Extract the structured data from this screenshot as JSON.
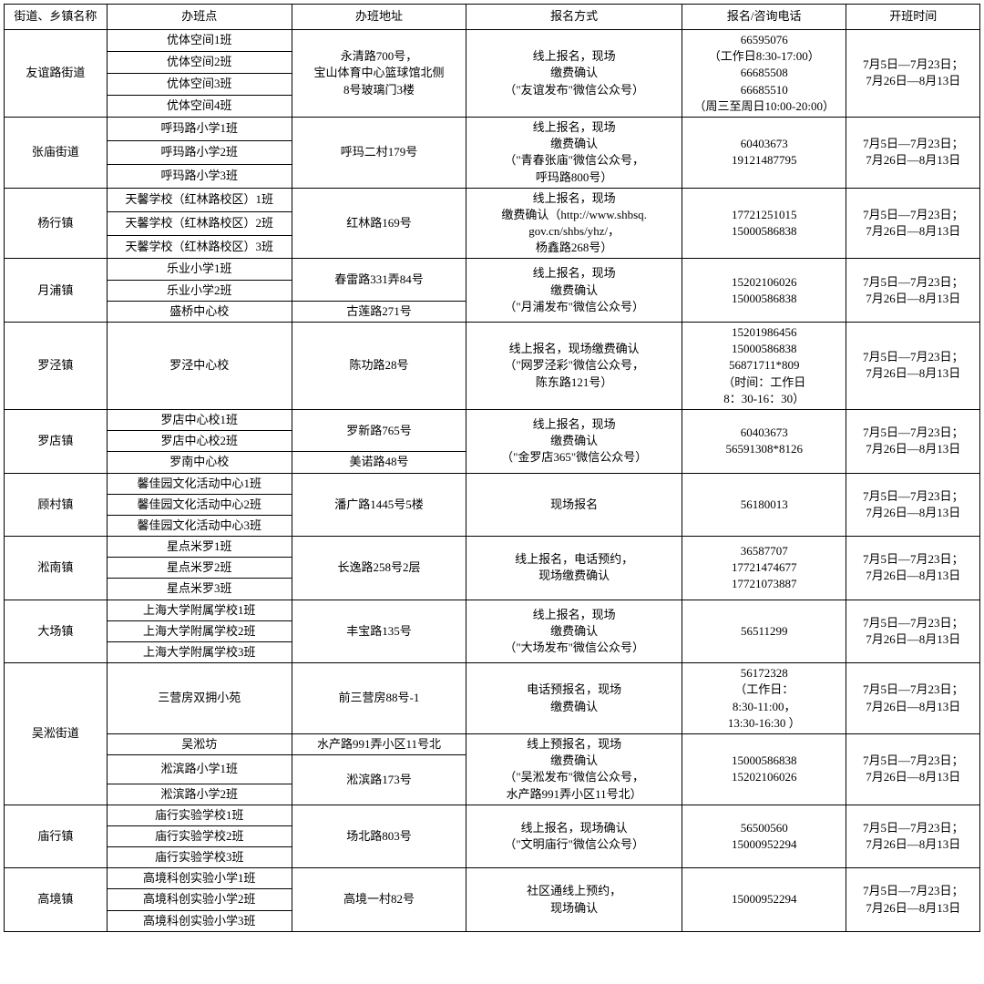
{
  "headers": [
    "街道、乡镇名称",
    "办班点",
    "办班地址",
    "报名方式",
    "报名/咨询电话",
    "开班时间"
  ],
  "time_default": "7月5日—7月23日；\n7月26日—8月13日",
  "d1": {
    "name": "友谊路街道",
    "s1": "优体空间1班",
    "s2": "优体空间2班",
    "s3": "优体空间3班",
    "s4": "优体空间4班",
    "addr": "永清路700号，\n宝山体育中心篮球馆北侧\n8号玻璃门3楼",
    "method": "线上报名，现场\n缴费确认\n（\"友谊发布\"微信公众号）",
    "phone": "66595076\n（工作日8:30-17:00）\n66685508\n66685510\n（周三至周日10:00-20:00）"
  },
  "d2": {
    "name": "张庙街道",
    "s1": "呼玛路小学1班",
    "s2": "呼玛路小学2班",
    "s3": "呼玛路小学3班",
    "addr": "呼玛二村179号",
    "method": "线上报名，现场\n缴费确认\n（\"青春张庙\"微信公众号，\n呼玛路800号）",
    "phone": "60403673\n19121487795"
  },
  "d3": {
    "name": "杨行镇",
    "s1": "天馨学校（红林路校区）1班",
    "s2": "天馨学校（红林路校区）2班",
    "s3": "天馨学校（红林路校区）3班",
    "addr": "红林路169号",
    "method": "线上报名，现场\n缴费确认（http://www.shbsq.\ngov.cn/shbs/yhz/，\n杨鑫路268号）",
    "phone": "17721251015\n15000586838"
  },
  "d4": {
    "name": "月浦镇",
    "s1": "乐业小学1班",
    "s2": "乐业小学2班",
    "s3": "盛桥中心校",
    "addr1": "春雷路331弄84号",
    "addr2": "古莲路271号",
    "method": "线上报名，现场\n缴费确认\n（\"月浦发布\"微信公众号）",
    "phone": "15202106026\n15000586838"
  },
  "d5": {
    "name": "罗泾镇",
    "s1": "罗泾中心校",
    "addr": "陈功路28号",
    "method": "线上报名，现场缴费确认\n（\"网罗泾彩\"微信公众号，\n陈东路121号）",
    "phone": "15201986456\n15000586838\n56871711*809\n（时间：工作日\n8：30-16：30）"
  },
  "d6": {
    "name": "罗店镇",
    "s1": "罗店中心校1班",
    "s2": "罗店中心校2班",
    "s3": "罗南中心校",
    "addr1": "罗新路765号",
    "addr2": "美诺路48号",
    "method": "线上报名，现场\n缴费确认\n（\"金罗店365\"微信公众号）",
    "phone": "60403673\n56591308*8126"
  },
  "d7": {
    "name": "顾村镇",
    "s1": "馨佳园文化活动中心1班",
    "s2": "馨佳园文化活动中心2班",
    "s3": "馨佳园文化活动中心3班",
    "addr": "潘广路1445号5楼",
    "method": "现场报名",
    "phone": "56180013"
  },
  "d8": {
    "name": "淞南镇",
    "s1": "星点米罗1班",
    "s2": "星点米罗2班",
    "s3": "星点米罗3班",
    "addr": "长逸路258号2层",
    "method": "线上报名，电话预约，\n现场缴费确认",
    "phone": "36587707\n17721474677\n17721073887"
  },
  "d9": {
    "name": "大场镇",
    "s1": "上海大学附属学校1班",
    "s2": "上海大学附属学校2班",
    "s3": "上海大学附属学校3班",
    "addr": "丰宝路135号",
    "method": "线上报名，现场\n缴费确认\n（\"大场发布\"微信公众号）",
    "phone": "56511299"
  },
  "d10": {
    "name": "吴淞街道",
    "s1": "三营房双拥小苑",
    "s2": "吴淞坊",
    "s3": "淞滨路小学1班",
    "s4": "淞滨路小学2班",
    "addr1": "前三营房88号-1",
    "addr2": "水产路991弄小区11号北",
    "addr3": "淞滨路173号",
    "method1": "电话预报名，现场\n缴费确认",
    "method2": "线上预报名，现场\n缴费确认\n（\"吴淞发布\"微信公众号，\n水产路991弄小区11号北）",
    "phone1": "56172328\n（工作日：\n8:30-11:00，\n13:30-16:30 ）",
    "phone2": "15000586838\n15202106026"
  },
  "d11": {
    "name": "庙行镇",
    "s1": "庙行实验学校1班",
    "s2": "庙行实验学校2班",
    "s3": "庙行实验学校3班",
    "addr": "场北路803号",
    "method": "线上报名，现场确认\n（\"文明庙行\"微信公众号）",
    "phone": "56500560\n15000952294"
  },
  "d12": {
    "name": "高境镇",
    "s1": "高境科创实验小学1班",
    "s2": "高境科创实验小学2班",
    "s3": "高境科创实验小学3班",
    "addr": "高境一村82号",
    "method": "社区通线上预约，\n现场确认",
    "phone": "15000952294"
  }
}
